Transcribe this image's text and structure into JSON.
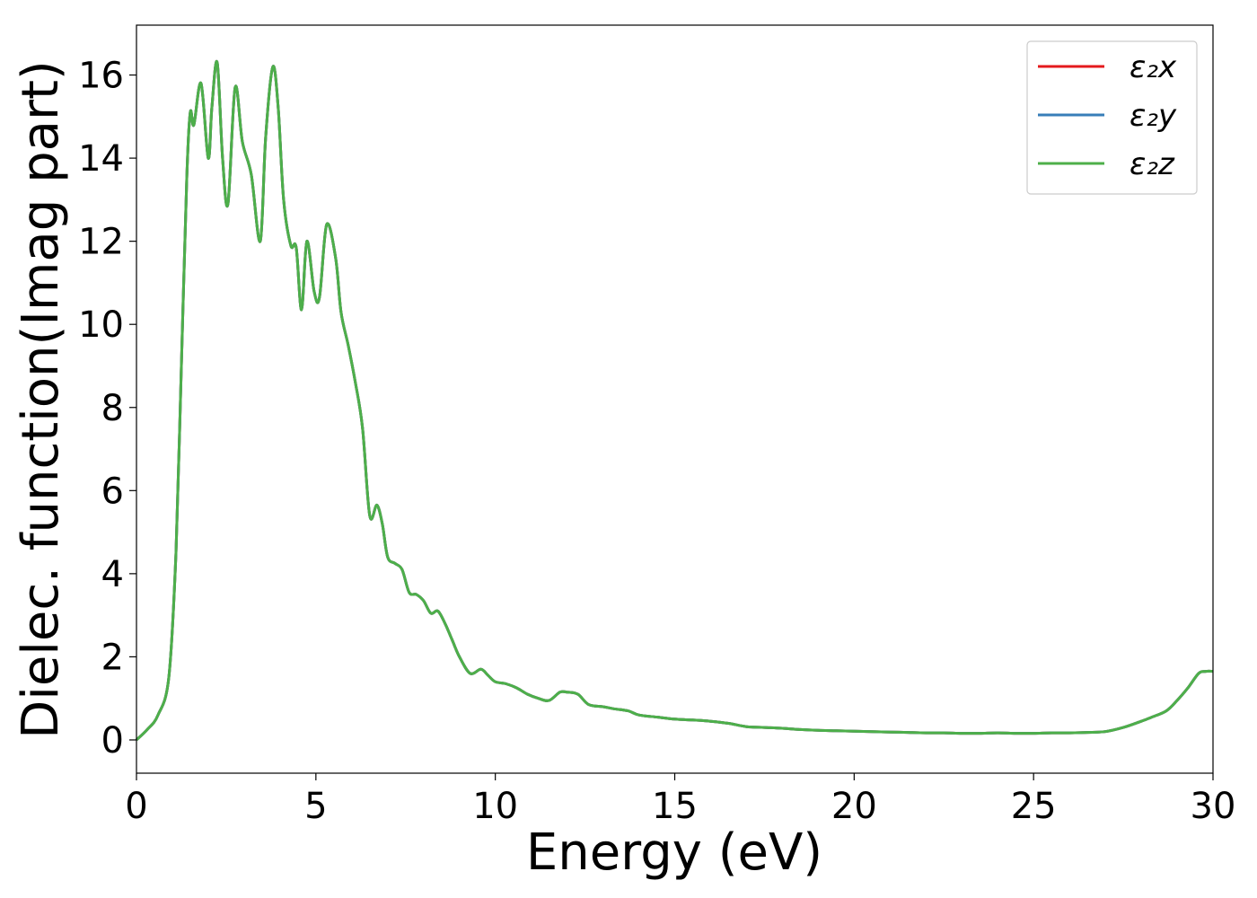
{
  "chart_data": {
    "type": "line",
    "xlabel": "Energy (eV)",
    "ylabel": "Dielec. function(Imag part)",
    "xlim": [
      0,
      30
    ],
    "ylim": [
      -0.8,
      17.2
    ],
    "xticks": [
      0,
      5,
      10,
      15,
      20,
      25,
      30
    ],
    "yticks": [
      0,
      2,
      4,
      6,
      8,
      10,
      12,
      14,
      16
    ],
    "grid": false,
    "legend_position": "top-right",
    "series": [
      {
        "name": "ε₂x",
        "color": "#e41a1c"
      },
      {
        "name": "ε₂y",
        "color": "#377eb8"
      },
      {
        "name": "ε₂z",
        "color": "#4daf4a"
      }
    ],
    "x": [
      0,
      0.3,
      0.6,
      0.9,
      1.1,
      1.25,
      1.4,
      1.5,
      1.6,
      1.8,
      2.0,
      2.1,
      2.25,
      2.4,
      2.55,
      2.75,
      2.95,
      3.2,
      3.45,
      3.6,
      3.8,
      3.95,
      4.1,
      4.3,
      4.45,
      4.6,
      4.75,
      4.95,
      5.1,
      5.3,
      5.55,
      5.7,
      5.9,
      6.1,
      6.3,
      6.5,
      6.7,
      6.85,
      7.0,
      7.2,
      7.4,
      7.6,
      7.8,
      8.0,
      8.2,
      8.4,
      8.6,
      8.8,
      9.0,
      9.3,
      9.6,
      9.8,
      10.0,
      10.3,
      10.6,
      10.9,
      11.2,
      11.5,
      11.8,
      12.0,
      12.3,
      12.6,
      13.0,
      13.3,
      13.7,
      14.0,
      14.5,
      15.0,
      15.5,
      16.0,
      16.5,
      17.0,
      17.5,
      18.0,
      18.5,
      19.0,
      19.5,
      20.0,
      20.5,
      21.0,
      21.5,
      22.0,
      22.5,
      23.0,
      23.5,
      24.0,
      24.5,
      25.0,
      25.5,
      26.0,
      26.5,
      27.0,
      27.5,
      28.0,
      28.3,
      28.7,
      29.0,
      29.3,
      29.6,
      29.8,
      30.0
    ],
    "y_all_series": [
      0,
      0.25,
      0.6,
      1.5,
      4.5,
      9.0,
      13.5,
      15.1,
      14.8,
      15.8,
      14.0,
      15.2,
      16.3,
      14.0,
      12.9,
      15.7,
      14.4,
      13.6,
      12.0,
      14.5,
      16.2,
      15.2,
      13.0,
      11.9,
      11.85,
      10.35,
      12.0,
      10.8,
      10.65,
      12.4,
      11.6,
      10.3,
      9.5,
      8.6,
      7.5,
      5.4,
      5.65,
      5.2,
      4.4,
      4.25,
      4.1,
      3.55,
      3.5,
      3.35,
      3.05,
      3.1,
      2.8,
      2.4,
      2.0,
      1.6,
      1.7,
      1.55,
      1.4,
      1.35,
      1.25,
      1.1,
      1.0,
      0.95,
      1.15,
      1.15,
      1.1,
      0.85,
      0.8,
      0.75,
      0.7,
      0.6,
      0.55,
      0.5,
      0.48,
      0.45,
      0.4,
      0.32,
      0.3,
      0.28,
      0.25,
      0.23,
      0.22,
      0.21,
      0.2,
      0.19,
      0.18,
      0.17,
      0.17,
      0.16,
      0.16,
      0.17,
      0.16,
      0.16,
      0.17,
      0.17,
      0.18,
      0.2,
      0.3,
      0.45,
      0.55,
      0.7,
      0.95,
      1.25,
      1.6,
      1.65,
      1.65
    ]
  }
}
